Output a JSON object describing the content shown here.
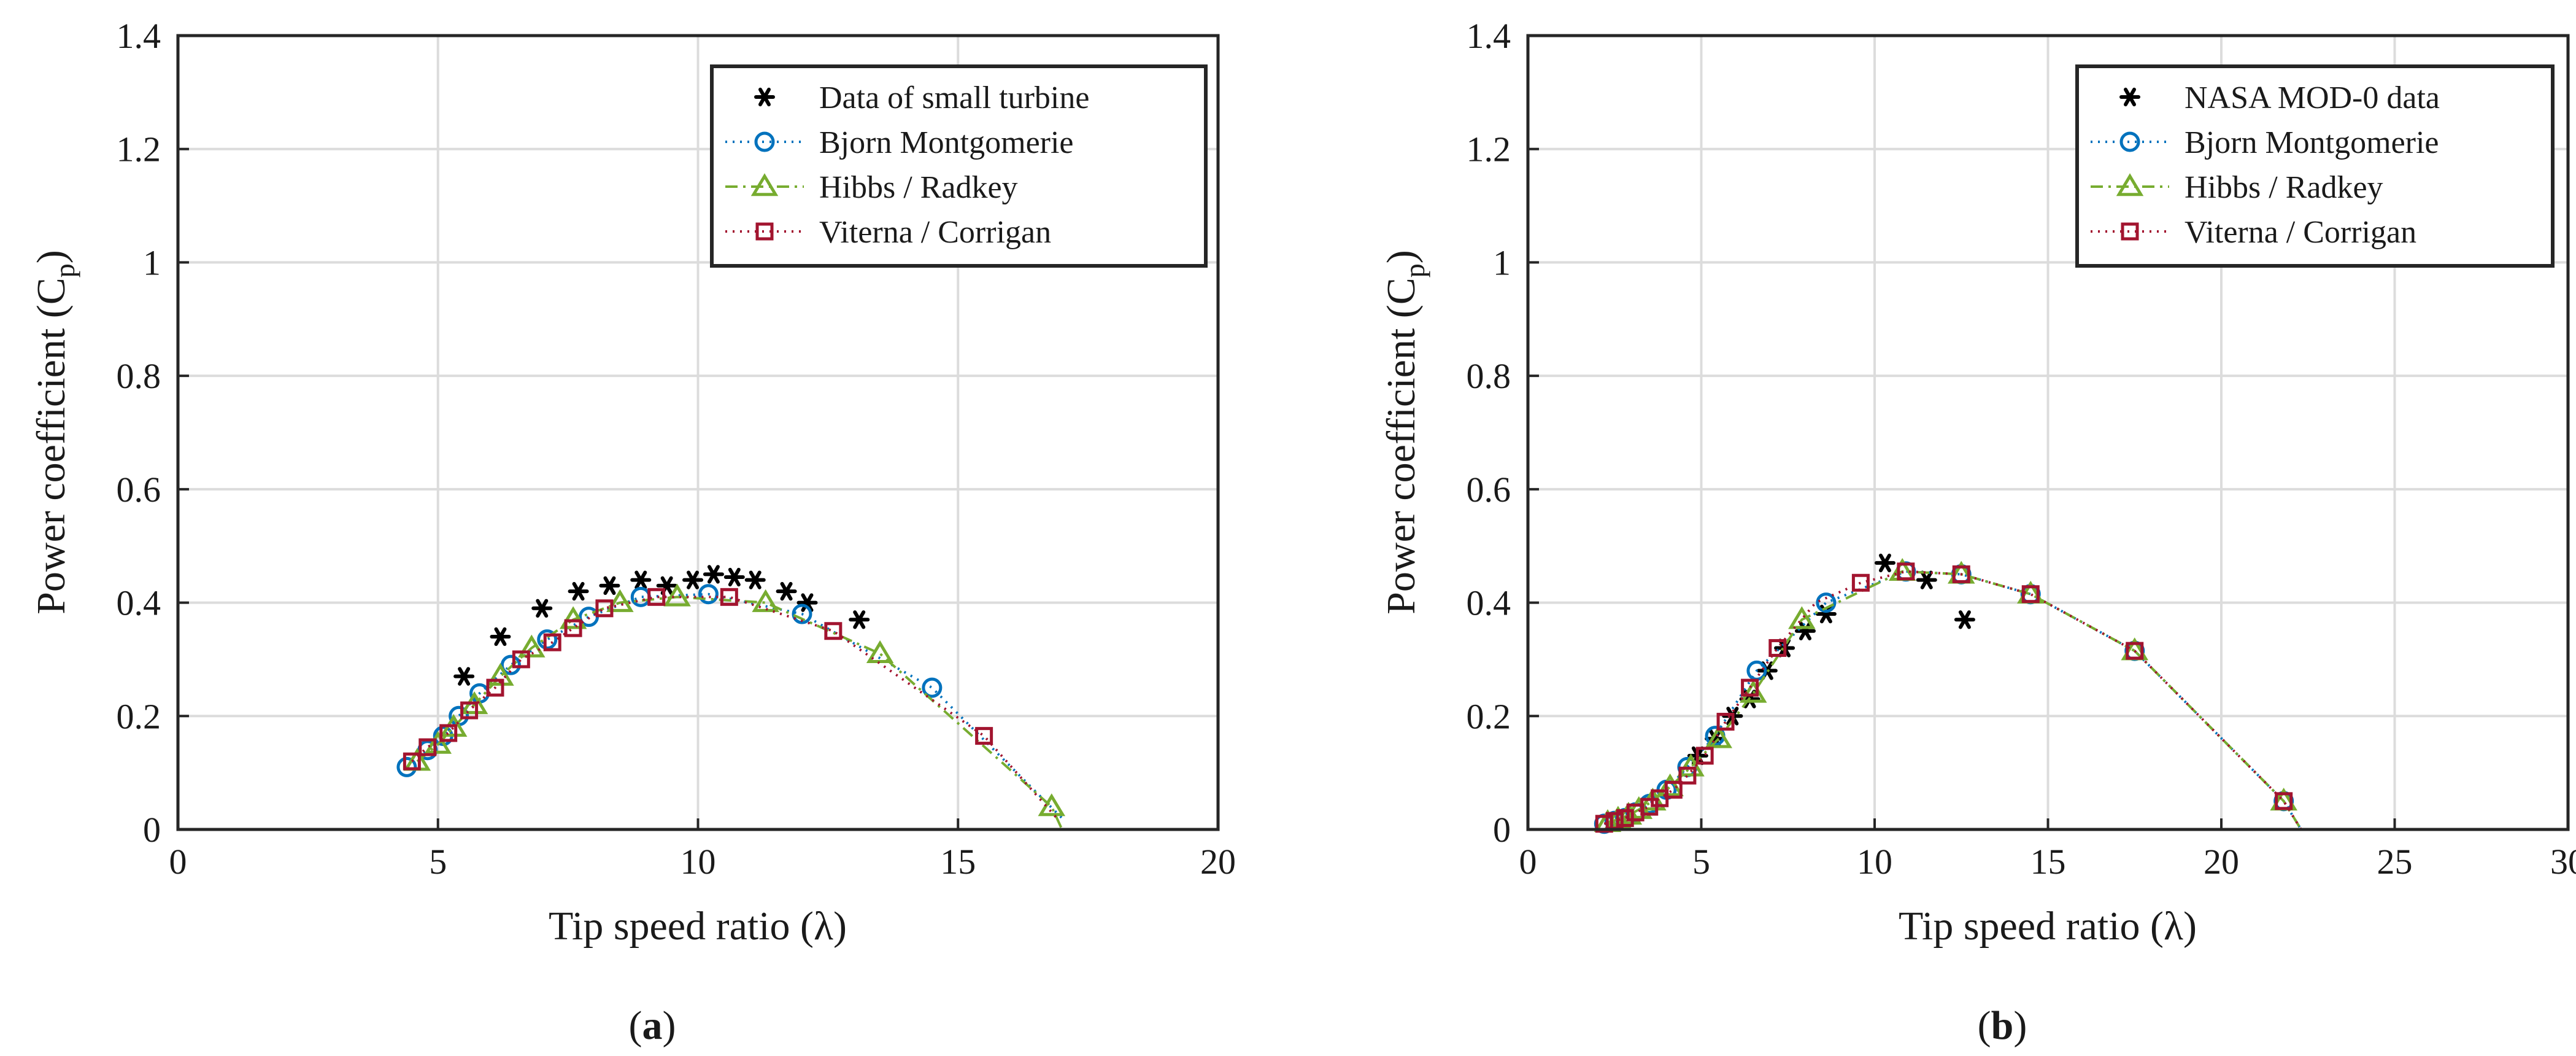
{
  "figure": {
    "panels": [
      {
        "label_open": "(",
        "label_letter": "a",
        "label_close": ")"
      },
      {
        "label_open": "(",
        "label_letter": "b",
        "label_close": ")"
      }
    ]
  },
  "chart_data": [
    {
      "type": "scatter",
      "xlabel": "Tip speed ratio (λ)",
      "ylabel": "Power coefficient (Cp)",
      "ylabel_parts": {
        "main": "Power coefficient (C",
        "sub": "p",
        "close": ")"
      },
      "xlim": [
        0,
        20
      ],
      "ylim": [
        0,
        1.4
      ],
      "xticks": [
        0,
        5,
        10,
        15,
        20
      ],
      "xtick_labels": [
        "0",
        "5",
        "10",
        "15",
        "20"
      ],
      "yticks": [
        0,
        0.2,
        0.4,
        0.6,
        0.8,
        1,
        1.2,
        1.4
      ],
      "ytick_labels": [
        "0",
        "0.2",
        "0.4",
        "0.6",
        "0.8",
        "1",
        "1.2",
        "1.4"
      ],
      "grid": true,
      "legend_position": "top-right",
      "series": [
        {
          "name": "Data of small turbine",
          "style": "asterisk",
          "color": "#000000",
          "x": [
            5.5,
            6.2,
            7.0,
            7.7,
            8.3,
            8.9,
            9.4,
            9.9,
            10.3,
            10.7,
            11.1,
            11.7,
            12.1,
            13.1
          ],
          "y": [
            0.27,
            0.34,
            0.39,
            0.42,
            0.43,
            0.44,
            0.43,
            0.44,
            0.45,
            0.445,
            0.44,
            0.42,
            0.4,
            0.37
          ]
        },
        {
          "name": "Bjorn Montgomerie",
          "style": "circle-dotted",
          "color": "#0072bd",
          "x": [
            4.4,
            4.8,
            5.1,
            5.4,
            5.8,
            6.4,
            7.1,
            7.9,
            8.9,
            10.2,
            12.0,
            14.5,
            17.0
          ],
          "y": [
            0.11,
            0.14,
            0.165,
            0.2,
            0.24,
            0.29,
            0.335,
            0.375,
            0.41,
            0.415,
            0.38,
            0.25,
            0.02
          ],
          "marker_x": [
            4.4,
            4.8,
            5.1,
            5.4,
            5.8,
            6.4,
            7.1,
            7.9,
            8.9,
            10.2,
            12.0,
            14.5
          ],
          "marker_y": [
            0.11,
            0.14,
            0.165,
            0.2,
            0.24,
            0.29,
            0.335,
            0.375,
            0.41,
            0.415,
            0.38,
            0.25
          ]
        },
        {
          "name": "Hibbs / Radkey",
          "style": "triangle-dashdot",
          "color": "#77ac30",
          "x": [
            4.6,
            5.0,
            5.3,
            5.7,
            6.2,
            6.8,
            7.6,
            8.5,
            9.6,
            11.3,
            13.5,
            16.8,
            17.0
          ],
          "y": [
            0.12,
            0.15,
            0.18,
            0.22,
            0.27,
            0.32,
            0.37,
            0.4,
            0.41,
            0.4,
            0.31,
            0.04,
            0.0
          ],
          "marker_x": [
            4.6,
            5.0,
            5.3,
            5.7,
            6.2,
            6.8,
            7.6,
            8.5,
            9.6,
            11.3,
            13.5,
            16.8
          ],
          "marker_y": [
            0.12,
            0.15,
            0.18,
            0.22,
            0.27,
            0.32,
            0.37,
            0.4,
            0.41,
            0.4,
            0.31,
            0.04
          ]
        },
        {
          "name": "Viterna / Corrigan",
          "style": "square-dotted",
          "color": "#a2142f",
          "x": [
            4.5,
            4.8,
            5.2,
            5.6,
            6.1,
            6.6,
            7.2,
            7.6,
            8.2,
            9.2,
            10.6,
            12.6,
            15.5,
            16.9
          ],
          "y": [
            0.12,
            0.145,
            0.17,
            0.21,
            0.25,
            0.3,
            0.33,
            0.355,
            0.39,
            0.41,
            0.41,
            0.35,
            0.165,
            0.02
          ],
          "marker_x": [
            4.5,
            4.8,
            5.2,
            5.6,
            6.1,
            6.6,
            7.2,
            7.6,
            8.2,
            9.2,
            10.6,
            12.6,
            15.5
          ],
          "marker_y": [
            0.12,
            0.145,
            0.17,
            0.21,
            0.25,
            0.3,
            0.33,
            0.355,
            0.39,
            0.41,
            0.41,
            0.35,
            0.165
          ]
        }
      ]
    },
    {
      "type": "scatter",
      "xlabel": "Tip speed ratio (λ)",
      "ylabel": "Power coefficient (Cp)",
      "ylabel_parts": {
        "main": "Power coefficient (C",
        "sub": "p",
        "close": ")"
      },
      "xlim": [
        0,
        30
      ],
      "ylim": [
        0,
        1.4
      ],
      "xticks": [
        0,
        5,
        10,
        15,
        20,
        25,
        30
      ],
      "xtick_labels": [
        "0",
        "5",
        "10",
        "15",
        "20",
        "25",
        "30"
      ],
      "yticks": [
        0,
        0.2,
        0.4,
        0.6,
        0.8,
        1,
        1.2,
        1.4
      ],
      "ytick_labels": [
        "0",
        "0.2",
        "0.4",
        "0.6",
        "0.8",
        "1",
        "1.2",
        "1.4"
      ],
      "grid": true,
      "legend_position": "top-right",
      "series": [
        {
          "name": "NASA MOD-0 data",
          "style": "asterisk",
          "color": "#000000",
          "x": [
            4.9,
            5.4,
            5.9,
            6.4,
            6.9,
            7.4,
            8.0,
            8.6,
            10.3,
            11.5,
            12.6
          ],
          "y": [
            0.13,
            0.16,
            0.2,
            0.23,
            0.28,
            0.32,
            0.35,
            0.38,
            0.47,
            0.44,
            0.37
          ]
        },
        {
          "name": "Bjorn Montgomerie",
          "style": "circle-dotted",
          "color": "#0072bd",
          "x": [
            2.2,
            2.5,
            2.8,
            3.1,
            3.5,
            4.0,
            4.6,
            5.4,
            6.6,
            8.6,
            10.9,
            12.5,
            14.5,
            17.5,
            21.8,
            22.3
          ],
          "y": [
            0.01,
            0.015,
            0.02,
            0.03,
            0.045,
            0.07,
            0.11,
            0.165,
            0.28,
            0.4,
            0.455,
            0.45,
            0.415,
            0.315,
            0.05,
            0.0
          ],
          "marker_x": [
            2.2,
            2.5,
            2.8,
            3.1,
            3.5,
            4.0,
            4.6,
            5.4,
            6.6,
            8.6,
            10.9,
            12.5,
            14.5,
            17.5,
            21.8
          ],
          "marker_y": [
            0.01,
            0.015,
            0.02,
            0.03,
            0.045,
            0.07,
            0.11,
            0.165,
            0.28,
            0.4,
            0.455,
            0.45,
            0.415,
            0.315,
            0.05
          ]
        },
        {
          "name": "Hibbs / Radkey",
          "style": "triangle-dashdot",
          "color": "#77ac30",
          "x": [
            2.3,
            2.6,
            2.9,
            3.2,
            3.6,
            4.1,
            4.7,
            5.5,
            6.5,
            7.9,
            10.8,
            12.5,
            14.5,
            17.5,
            21.8,
            22.3
          ],
          "y": [
            0.012,
            0.018,
            0.025,
            0.035,
            0.05,
            0.075,
            0.11,
            0.16,
            0.24,
            0.37,
            0.455,
            0.45,
            0.415,
            0.315,
            0.05,
            0.0
          ],
          "marker_x": [
            2.3,
            2.6,
            2.9,
            3.2,
            3.6,
            4.1,
            4.7,
            5.5,
            6.5,
            7.9,
            10.8,
            12.5,
            14.5,
            17.5,
            21.8
          ],
          "marker_y": [
            0.012,
            0.018,
            0.025,
            0.035,
            0.05,
            0.075,
            0.11,
            0.16,
            0.24,
            0.37,
            0.455,
            0.45,
            0.415,
            0.315,
            0.05
          ]
        },
        {
          "name": "Viterna / Corrigan",
          "style": "square-dotted",
          "color": "#a2142f",
          "x": [
            2.2,
            2.5,
            2.8,
            3.1,
            3.5,
            3.8,
            4.2,
            4.6,
            5.1,
            5.7,
            6.4,
            7.2,
            8.3,
            9.6,
            10.9,
            12.5,
            14.5,
            17.5,
            21.8,
            22.3
          ],
          "y": [
            0.01,
            0.015,
            0.02,
            0.03,
            0.04,
            0.055,
            0.07,
            0.095,
            0.13,
            0.19,
            0.25,
            0.32,
            0.4,
            0.435,
            0.455,
            0.45,
            0.415,
            0.315,
            0.05,
            0.0
          ],
          "marker_x": [
            2.2,
            2.5,
            2.8,
            3.1,
            3.5,
            3.8,
            4.2,
            4.6,
            5.1,
            5.7,
            6.4,
            7.2,
            9.6,
            10.9,
            12.5,
            14.5,
            17.5,
            21.8
          ],
          "marker_y": [
            0.01,
            0.015,
            0.02,
            0.03,
            0.04,
            0.055,
            0.07,
            0.095,
            0.13,
            0.19,
            0.25,
            0.32,
            0.435,
            0.455,
            0.45,
            0.415,
            0.315,
            0.05
          ]
        }
      ]
    }
  ]
}
